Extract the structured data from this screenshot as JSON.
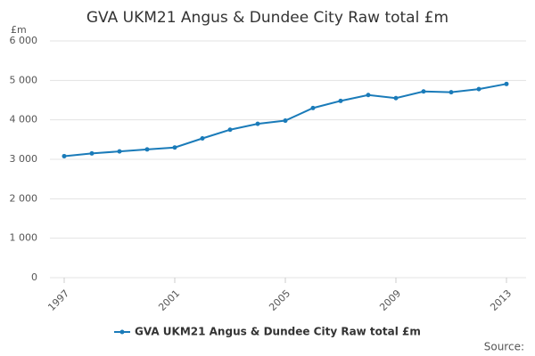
{
  "chart_data": {
    "type": "line",
    "title": "GVA UKM21 Angus & Dundee City Raw total £m",
    "y_unit": "£m",
    "source": "Source:",
    "x": [
      1997,
      1998,
      1999,
      2000,
      2001,
      2002,
      2003,
      2004,
      2005,
      2006,
      2007,
      2008,
      2009,
      2010,
      2011,
      2012,
      2013
    ],
    "series": [
      {
        "name": "GVA UKM21 Angus & Dundee City Raw total £m",
        "color": "#1a7bb9",
        "values": [
          3080,
          3150,
          3200,
          3250,
          3300,
          3530,
          3750,
          3900,
          3980,
          4300,
          4480,
          4630,
          4550,
          4720,
          4700,
          4780,
          4910
        ]
      }
    ],
    "xlim": [
      1997,
      2013
    ],
    "xticks": [
      1997,
      2001,
      2005,
      2009,
      2013
    ],
    "ylim": [
      0,
      6000
    ],
    "yticks": [
      0,
      {
        "value": 1000,
        "label": "1 000"
      },
      {
        "value": 2000,
        "label": "2 000"
      },
      {
        "value": 3000,
        "label": "3 000"
      },
      {
        "value": 4000,
        "label": "4 000"
      },
      {
        "value": 5000,
        "label": "5 000"
      },
      {
        "value": 6000,
        "label": "6 000"
      }
    ],
    "grid": true
  }
}
